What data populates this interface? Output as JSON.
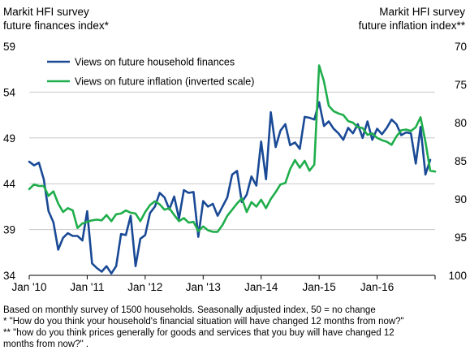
{
  "chart_data": {
    "type": "line",
    "left_axis_title": [
      "Markit HFI survey",
      "future finances index*"
    ],
    "right_axis_title": [
      "Markit HFI survey",
      "future inflation index**"
    ],
    "left_ylim": [
      34,
      59
    ],
    "left_ticks": [
      "59",
      "54",
      "49",
      "44",
      "39",
      "34"
    ],
    "right_ylim": [
      70,
      100
    ],
    "right_inverted": true,
    "right_ticks": [
      "70",
      "75",
      "80",
      "85",
      "90",
      "95",
      "100"
    ],
    "x_start": "2010-01",
    "x_ticks": [
      "Jan '10",
      "Jan '11",
      "Jan '12",
      "Jan '13",
      "Jan-14",
      "Jan-15",
      "Jan-16"
    ],
    "grid": "horizontal",
    "legend_position": "top-left",
    "colors": {
      "finances": "#1a4a96",
      "inflation": "#1fae4b",
      "grid": "#c8c8c8"
    },
    "series": [
      {
        "name": "Views on future household finances",
        "axis": "left",
        "values": [
          46.4,
          46.0,
          46.3,
          44.5,
          41.0,
          39.8,
          36.8,
          38.1,
          38.6,
          38.3,
          38.3,
          37.8,
          41.0,
          35.3,
          34.8,
          34.4,
          35.0,
          34.2,
          35.0,
          38.5,
          38.4,
          40.5,
          35.0,
          38.0,
          38.4,
          40.8,
          41.5,
          43.0,
          42.5,
          41.2,
          42.6,
          40.2,
          43.3,
          43.0,
          43.1,
          38.2,
          42.1,
          41.5,
          41.8,
          40.5,
          41.5,
          42.5,
          45.0,
          45.4,
          42.0,
          42.8,
          44.8,
          43.8,
          48.6,
          44.5,
          51.8,
          48.0,
          49.8,
          50.5,
          48.2,
          48.5,
          47.8,
          51.3,
          51.2,
          51.0,
          52.9,
          50.3,
          50.8,
          50.0,
          49.5,
          48.8,
          50.1,
          49.5,
          50.5,
          49.0,
          50.8,
          48.8,
          50.0,
          49.4,
          50.1,
          51.0,
          50.5,
          49.3,
          49.6,
          49.5,
          46.2,
          50.2,
          45.0,
          46.6
        ]
      },
      {
        "name": "Views on future inflation (inverted scale)",
        "axis": "right",
        "values": [
          88.7,
          88.1,
          88.3,
          88.3,
          89.6,
          89.0,
          90.6,
          91.7,
          91.2,
          91.5,
          93.8,
          93.2,
          93.0,
          92.8,
          92.7,
          92.8,
          92.1,
          92.9,
          92.0,
          91.9,
          91.5,
          91.8,
          91.9,
          92.9,
          91.7,
          90.8,
          90.3,
          90.7,
          91.4,
          91.2,
          92.1,
          92.9,
          92.5,
          93.1,
          93.0,
          94.2,
          93.6,
          94.1,
          94.3,
          94.3,
          93.4,
          92.2,
          91.4,
          90.6,
          89.9,
          91.7,
          90.4,
          91.0,
          90.1,
          91.2,
          90.0,
          89.1,
          88.1,
          87.9,
          86.1,
          84.9,
          85.9,
          85.0,
          86.3,
          85.5,
          72.5,
          74.6,
          77.8,
          78.5,
          78.8,
          79.0,
          79.8,
          80.0,
          80.6,
          80.7,
          81.6,
          81.4,
          82.0,
          82.3,
          82.5,
          82.9,
          81.8,
          81.0,
          80.9,
          81.1,
          80.6,
          79.3,
          82.5,
          86.3,
          86.4
        ]
      }
    ],
    "footnotes": [
      "Based on monthly survey of 1500 households. Seasonally adjusted index, 50 = no change",
      "* \"How do you think your household's  financial situation will have changed 12 months  from now?\"",
      "** \"how do you think prices generally for goods and services that you buy will have changed 12",
      "months from now?\"  ."
    ]
  }
}
